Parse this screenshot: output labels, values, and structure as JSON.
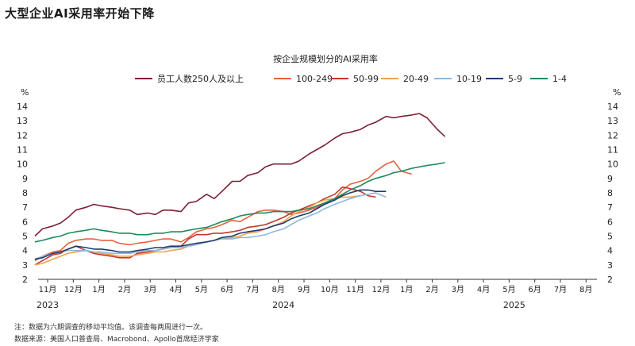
{
  "headline": "大型企业AI采用率开始下降",
  "note": "注：数据为六期调查的移动平均值。该调查每两周进行一次。",
  "source": "数据来源：美国人口普查局、Macrobond、Apollo首席经济学家",
  "chart_data": {
    "type": "line",
    "title": "按企业规模划分的AI采用率",
    "ylabel_left": "%",
    "ylabel_right": "%",
    "ylim": [
      2,
      14
    ],
    "yticks": [
      2,
      3,
      4,
      5,
      6,
      7,
      8,
      9,
      10,
      11,
      12,
      13,
      14
    ],
    "grid": false,
    "legend_position": "top",
    "x_tick_labels": [
      "11月",
      "12月",
      "1月",
      "2月",
      "3月",
      "4月",
      "5月",
      "6月",
      "7月",
      "8月",
      "9月",
      "10月",
      "11月",
      "12月",
      "1月",
      "2月",
      "3月",
      "4月",
      "5月",
      "6月",
      "7月",
      "8月"
    ],
    "year_labels": [
      {
        "label": "2023",
        "at": 0
      },
      {
        "label": "2024",
        "at": 9.2
      },
      {
        "label": "2025",
        "at": 18.2
      }
    ],
    "x_range": [
      -0.5,
      21.2
    ],
    "x": [
      -0.5,
      -0.2,
      0.2,
      0.5,
      0.8,
      1.1,
      1.5,
      1.8,
      2.1,
      2.5,
      2.8,
      3.2,
      3.5,
      3.9,
      4.2,
      4.5,
      4.8,
      5.2,
      5.5,
      5.8,
      6.2,
      6.5,
      6.8,
      7.2,
      7.5,
      7.8,
      8.2,
      8.5,
      8.8,
      9.2,
      9.5,
      9.8,
      10.2,
      10.5,
      10.8,
      11.2,
      11.5,
      11.8,
      12.2,
      12.5,
      12.8,
      13.2,
      13.5,
      13.8,
      14.2,
      14.5,
      14.8,
      15.2,
      15.5,
      15.8,
      16.2,
      16.5,
      16.8,
      17.2,
      17.5,
      17.8,
      18.2,
      18.5,
      18.8,
      19.2,
      19.5,
      19.8,
      20.2,
      20.5,
      20.8,
      21.2
    ],
    "series": [
      {
        "name": "员工人数250人及以上",
        "color": "#7b2035",
        "values": [
          5.0,
          5.5,
          5.7,
          5.9,
          6.3,
          6.8,
          7.0,
          7.2,
          7.1,
          7.0,
          6.9,
          6.8,
          6.5,
          6.6,
          6.5,
          6.8,
          6.8,
          6.7,
          7.3,
          7.4,
          7.9,
          7.6,
          8.1,
          8.8,
          8.8,
          9.2,
          9.4,
          9.8,
          10.0,
          10.0,
          10.0,
          10.2,
          10.7,
          11.0,
          11.3,
          11.8,
          12.1,
          12.2,
          12.4,
          12.7,
          12.9,
          13.3,
          13.2,
          13.3,
          13.4,
          13.5,
          13.2,
          12.4,
          11.9,
          null,
          null,
          null,
          null,
          null,
          null,
          null,
          null,
          null,
          null,
          null,
          null,
          null,
          null,
          null,
          null,
          null
        ]
      },
      {
        "name": "100-249",
        "color": "#e5623d",
        "values": [
          3.3,
          3.6,
          3.9,
          4.0,
          4.5,
          4.7,
          4.8,
          4.8,
          4.7,
          4.7,
          4.5,
          4.4,
          4.5,
          4.6,
          4.7,
          4.8,
          4.8,
          4.6,
          4.9,
          5.3,
          5.5,
          5.6,
          5.8,
          6.1,
          6.0,
          6.3,
          6.7,
          6.8,
          6.8,
          6.7,
          6.5,
          6.6,
          6.8,
          7.0,
          7.3,
          7.6,
          8.2,
          8.6,
          8.8,
          9.0,
          9.5,
          10.0,
          10.2,
          9.5,
          9.3,
          null,
          null,
          null,
          null,
          null,
          null,
          null,
          null,
          null,
          null,
          null,
          null,
          null,
          null,
          null,
          null,
          null,
          null,
          null,
          null,
          null
        ]
      },
      {
        "name": "50-99",
        "color": "#c0392b",
        "values": [
          3.0,
          3.3,
          3.7,
          3.8,
          4.1,
          4.3,
          4.0,
          3.8,
          3.7,
          3.6,
          3.5,
          3.5,
          3.8,
          3.9,
          4.0,
          4.1,
          4.2,
          4.3,
          4.8,
          5.1,
          5.1,
          5.2,
          5.2,
          5.3,
          5.4,
          5.6,
          5.7,
          5.8,
          6.0,
          6.3,
          6.6,
          6.8,
          7.1,
          7.3,
          7.6,
          7.9,
          8.4,
          8.3,
          8.1,
          7.8,
          7.7,
          null,
          null,
          null,
          null,
          null,
          null,
          null,
          null,
          null,
          null,
          null,
          null,
          null,
          null,
          null,
          null,
          null,
          null,
          null,
          null,
          null,
          null,
          null,
          null,
          null
        ]
      },
      {
        "name": "20-49",
        "color": "#f0a24b",
        "values": [
          3.0,
          3.1,
          3.4,
          3.6,
          3.8,
          3.9,
          4.0,
          3.9,
          3.8,
          3.7,
          3.6,
          3.6,
          3.7,
          3.8,
          3.9,
          3.9,
          4.0,
          4.1,
          4.3,
          4.4,
          4.6,
          4.7,
          4.8,
          4.9,
          5.0,
          5.2,
          5.3,
          5.5,
          5.7,
          6.0,
          6.4,
          6.7,
          7.0,
          7.3,
          7.5,
          7.6,
          7.7,
          7.7,
          7.8,
          null,
          null,
          null,
          null,
          null,
          null,
          null,
          null,
          null,
          null,
          null,
          null,
          null,
          null,
          null,
          null,
          null,
          null,
          null,
          null,
          null,
          null,
          null,
          null,
          null,
          null,
          null
        ]
      },
      {
        "name": "10-19",
        "color": "#8fb8de",
        "values": [
          3.4,
          3.6,
          3.8,
          3.9,
          4.0,
          4.0,
          4.0,
          3.9,
          3.9,
          3.8,
          3.8,
          3.8,
          3.9,
          4.0,
          4.0,
          4.1,
          4.2,
          4.2,
          4.3,
          4.4,
          4.6,
          4.7,
          4.8,
          4.8,
          4.9,
          4.9,
          5.0,
          5.1,
          5.3,
          5.5,
          5.8,
          6.1,
          6.4,
          6.6,
          6.9,
          7.2,
          7.4,
          7.6,
          7.8,
          7.9,
          8.0,
          7.7,
          null,
          null,
          null,
          null,
          null,
          null,
          null,
          null,
          null,
          null,
          null,
          null,
          null,
          null,
          null,
          null,
          null,
          null,
          null,
          null,
          null,
          null,
          null,
          null
        ]
      },
      {
        "name": "5-9",
        "color": "#1f3b6b",
        "values": [
          3.4,
          3.5,
          3.8,
          3.9,
          4.1,
          4.3,
          4.2,
          4.1,
          4.1,
          4.0,
          3.9,
          3.9,
          4.0,
          4.1,
          4.2,
          4.2,
          4.3,
          4.3,
          4.4,
          4.5,
          4.6,
          4.7,
          4.9,
          5.0,
          5.2,
          5.3,
          5.4,
          5.5,
          5.7,
          5.9,
          6.2,
          6.4,
          6.6,
          6.9,
          7.2,
          7.5,
          7.8,
          8.0,
          8.2,
          8.2,
          8.1,
          8.1,
          null,
          null,
          null,
          null,
          null,
          null,
          null,
          null,
          null,
          null,
          null,
          null,
          null,
          null,
          null,
          null,
          null,
          null,
          null,
          null,
          null,
          null,
          null,
          null
        ]
      },
      {
        "name": "1-4",
        "color": "#1e8a5a",
        "values": [
          4.6,
          4.7,
          4.9,
          5.0,
          5.2,
          5.3,
          5.4,
          5.5,
          5.4,
          5.3,
          5.2,
          5.2,
          5.1,
          5.1,
          5.2,
          5.2,
          5.3,
          5.3,
          5.4,
          5.5,
          5.6,
          5.8,
          6.0,
          6.2,
          6.4,
          6.5,
          6.6,
          6.6,
          6.7,
          6.7,
          6.7,
          6.8,
          6.9,
          7.1,
          7.3,
          7.6,
          7.9,
          8.2,
          8.5,
          8.8,
          9.0,
          9.2,
          9.4,
          9.5,
          9.7,
          9.8,
          9.9,
          10.0,
          10.1,
          null,
          null,
          null,
          null,
          null,
          null,
          null,
          null,
          null,
          null,
          null,
          null,
          null,
          null,
          null,
          null,
          null
        ]
      }
    ]
  }
}
